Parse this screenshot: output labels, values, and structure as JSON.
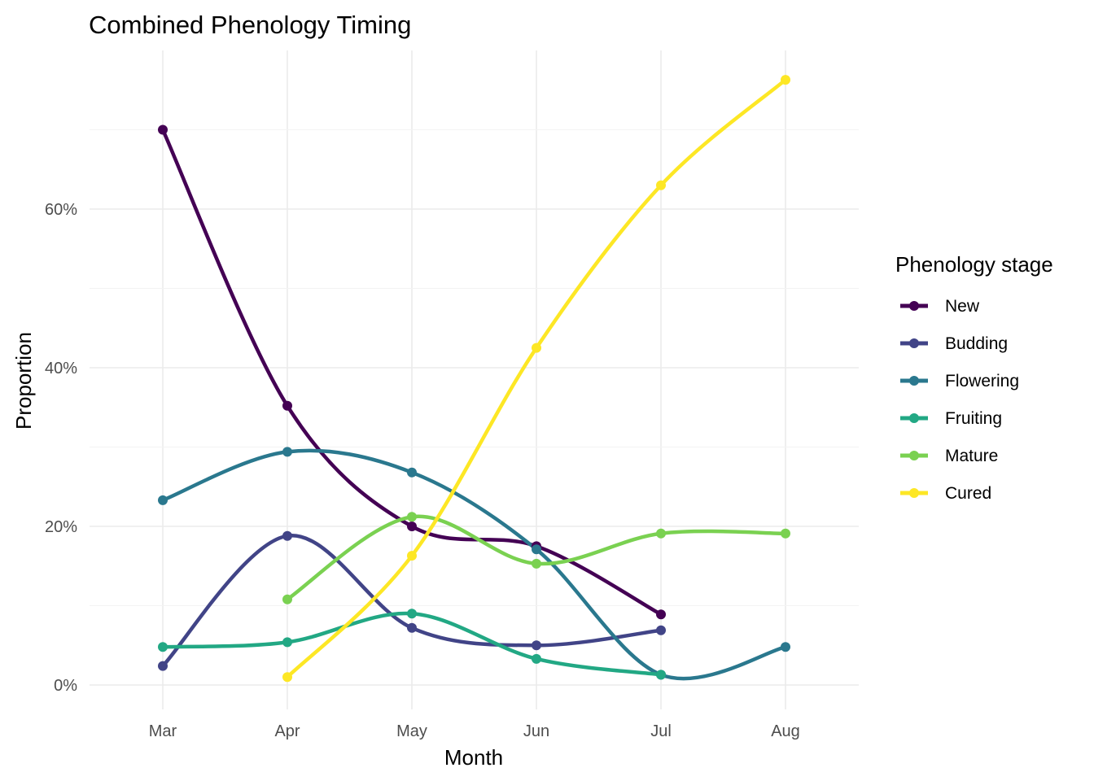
{
  "chart_data": {
    "type": "line",
    "title": "Combined Phenology Timing",
    "xlabel": "Month",
    "ylabel": "Proportion",
    "x": [
      "Mar",
      "Apr",
      "May",
      "Jun",
      "Jul",
      "Aug"
    ],
    "ylim": [
      -0.03,
      0.8
    ],
    "y_ticks": [
      0,
      0.2,
      0.4,
      0.6
    ],
    "y_tick_labels": [
      "0%",
      "20%",
      "40%",
      "60%"
    ],
    "smoothed": true,
    "grid": true,
    "legend_title": "Phenology stage",
    "legend_position": "right",
    "series": [
      {
        "name": "New",
        "color": "#440154",
        "x": [
          "Mar",
          "Apr",
          "May",
          "Jun",
          "Jul"
        ],
        "values": [
          0.7,
          0.352,
          0.2,
          0.175,
          0.089
        ]
      },
      {
        "name": "Budding",
        "color": "#414487",
        "x": [
          "Mar",
          "Apr",
          "May",
          "Jun",
          "Jul"
        ],
        "values": [
          0.024,
          0.188,
          0.072,
          0.05,
          0.069
        ]
      },
      {
        "name": "Flowering",
        "color": "#2A788E",
        "x": [
          "Mar",
          "Apr",
          "May",
          "Jun",
          "Jul",
          "Aug"
        ],
        "values": [
          0.233,
          0.294,
          0.268,
          0.171,
          0.013,
          0.048
        ]
      },
      {
        "name": "Fruiting",
        "color": "#22A884",
        "x": [
          "Mar",
          "Apr",
          "May",
          "Jun",
          "Jul"
        ],
        "values": [
          0.048,
          0.054,
          0.09,
          0.033,
          0.013
        ]
      },
      {
        "name": "Mature",
        "color": "#7AD151",
        "x": [
          "Apr",
          "May",
          "Jun",
          "Jul",
          "Aug"
        ],
        "values": [
          0.108,
          0.212,
          0.153,
          0.191,
          0.191
        ]
      },
      {
        "name": "Cured",
        "color": "#FDE725",
        "x": [
          "Apr",
          "May",
          "Jun",
          "Jul",
          "Aug"
        ],
        "values": [
          0.01,
          0.163,
          0.425,
          0.63,
          0.763
        ]
      }
    ]
  }
}
